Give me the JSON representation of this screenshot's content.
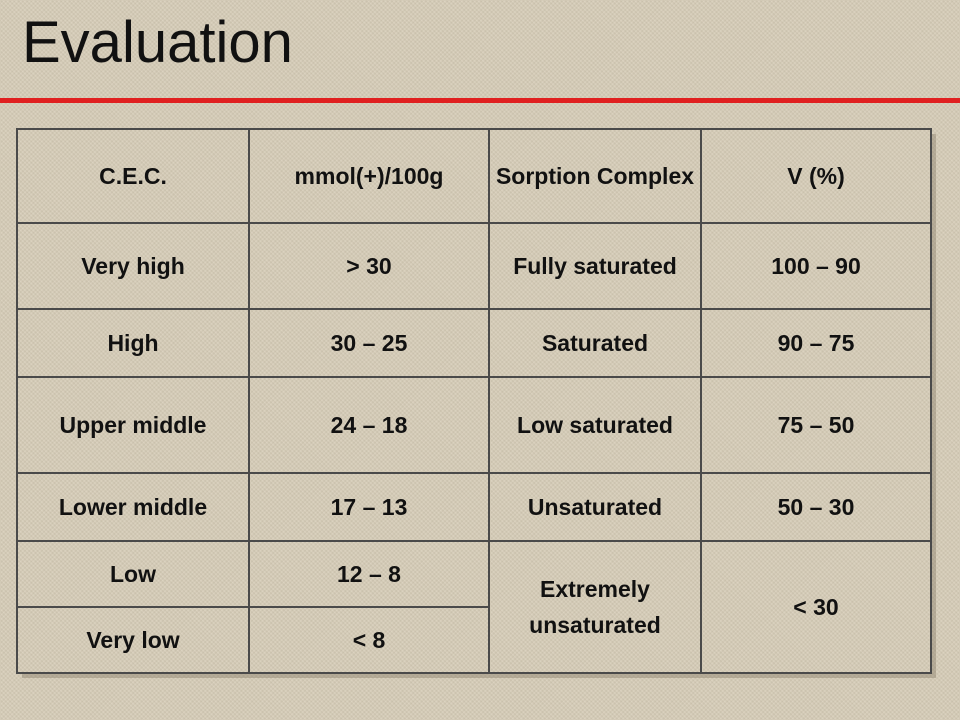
{
  "title": "Evaluation",
  "accent_color": "#e02020",
  "table": {
    "header": [
      "C.E.C.",
      "mmol(+)/100g",
      "Sorption Complex",
      "V (%)"
    ],
    "rows": [
      [
        "Very high",
        "> 30",
        "Fully saturated",
        "100 – 90"
      ],
      [
        "High",
        "30 – 25",
        "Saturated",
        "90 – 75"
      ],
      [
        "Upper middle",
        "24 – 18",
        "Low saturated",
        "75 – 50"
      ],
      [
        "Lower middle",
        "17 – 13",
        "Unsaturated",
        "50 – 30"
      ],
      [
        "Low",
        "12 – 8",
        "Extremely unsaturated",
        "< 30"
      ],
      [
        "Very low",
        "< 8"
      ]
    ]
  }
}
